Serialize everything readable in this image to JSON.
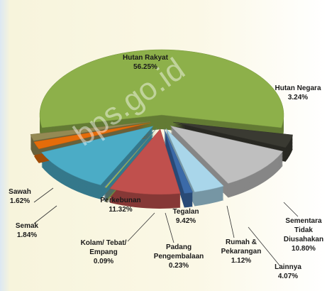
{
  "chart_data": {
    "type": "pie",
    "watermark": "bps.go.id",
    "categories": [
      "Hutan Rakyat",
      "Hutan Negara",
      "Sementara Tidak Diusahakan",
      "Lainnya",
      "Rumah & Pekarangan",
      "Tegalan",
      "Padang Pengembalaan",
      "Kolam/ Tebat/ Empang",
      "Perkebunan",
      "Semak",
      "Sawah"
    ],
    "values": [
      56.25,
      3.24,
      10.8,
      4.07,
      1.12,
      9.42,
      0.23,
      0.09,
      11.32,
      1.84,
      1.62
    ],
    "value_labels": [
      "56.25%",
      "3.24%",
      "10.80%",
      "4.07%",
      "1.12%",
      "9.42%",
      "0.23%",
      "0.09%",
      "11.32%",
      "1.84%",
      "1.62%"
    ],
    "colors": [
      "#8db04a",
      "#3a3a32",
      "#bfbfbf",
      "#a9d6ea",
      "#3b6aa8",
      "#c0504d",
      "#9bbb59",
      "#4f81bd",
      "#4bacc6",
      "#e46c0a",
      "#948a54"
    ]
  }
}
